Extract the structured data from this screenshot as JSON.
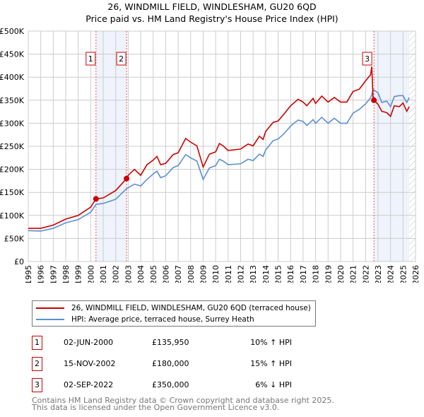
{
  "chart_data": {
    "type": "line",
    "title": "26, WINDMILL FIELD, WINDLESHAM, GU20 6QD",
    "subtitle": "Price paid vs. HM Land Registry's House Price Index (HPI)",
    "ylim": [
      0,
      500000
    ],
    "xlim": [
      1995,
      2026
    ],
    "yticks": [
      {
        "v": 0,
        "label": "£0"
      },
      {
        "v": 50000,
        "label": "£50K"
      },
      {
        "v": 100000,
        "label": "£100K"
      },
      {
        "v": 150000,
        "label": "£150K"
      },
      {
        "v": 200000,
        "label": "£200K"
      },
      {
        "v": 250000,
        "label": "£250K"
      },
      {
        "v": 300000,
        "label": "£300K"
      },
      {
        "v": 350000,
        "label": "£350K"
      },
      {
        "v": 400000,
        "label": "£400K"
      },
      {
        "v": 450000,
        "label": "£450K"
      },
      {
        "v": 500000,
        "label": "£500K"
      }
    ],
    "xticks": [
      "1995",
      "1996",
      "1997",
      "1998",
      "1999",
      "2000",
      "2001",
      "2002",
      "2003",
      "2004",
      "2005",
      "2006",
      "2007",
      "2008",
      "2009",
      "2010",
      "2011",
      "2012",
      "2013",
      "2014",
      "2015",
      "2016",
      "2017",
      "2018",
      "2019",
      "2020",
      "2021",
      "2022",
      "2023",
      "2024",
      "2025",
      "2026"
    ],
    "grid": true,
    "x": [
      1995,
      1996,
      1997,
      1998,
      1999,
      2000,
      2000.42,
      2001,
      2002,
      2002.87,
      2003,
      2003.5,
      2004,
      2004.5,
      2005,
      2005.3,
      2005.6,
      2006,
      2006.6,
      2007,
      2007.6,
      2008,
      2008.5,
      2009,
      2009.5,
      2010,
      2010.3,
      2010.6,
      2011,
      2012,
      2012.6,
      2013,
      2013.5,
      2013.8,
      2014,
      2014.6,
      2015,
      2015.5,
      2016,
      2016.6,
      2017,
      2017.3,
      2017.8,
      2018,
      2018.5,
      2019,
      2019.5,
      2020,
      2020.5,
      2021,
      2021.5,
      2022,
      2022.4,
      2022.5,
      2022.6,
      2022.67,
      2023,
      2023.3,
      2023.7,
      2024,
      2024.3,
      2024.7,
      2025,
      2025.3,
      2025.5
    ],
    "series": [
      {
        "name": "26, WINDMILL FIELD, WINDLESHAM, GU20 6QD (terraced house)",
        "color": "#cc0000",
        "values": [
          72000,
          72000,
          79000,
          92000,
          100000,
          118000,
          136000,
          138000,
          154000,
          180000,
          187000,
          200000,
          187000,
          210000,
          220000,
          228000,
          210000,
          213000,
          232000,
          236000,
          267000,
          259000,
          251000,
          205000,
          233000,
          238000,
          256000,
          251000,
          241000,
          244000,
          255000,
          251000,
          272000,
          265000,
          282000,
          302000,
          305000,
          321000,
          338000,
          352000,
          346000,
          338000,
          354000,
          343000,
          359000,
          346000,
          356000,
          346000,
          346000,
          369000,
          374000,
          392000,
          405000,
          423000,
          354000,
          350000,
          341000,
          326000,
          323000,
          315000,
          338000,
          336000,
          344000,
          326000,
          336000
        ]
      },
      {
        "name": "HPI: Average price, terraced house, Surrey Heath",
        "color": "#5b8fd4",
        "values": [
          67000,
          66000,
          72000,
          84000,
          91000,
          107000,
          124000,
          126000,
          135000,
          158000,
          160000,
          168000,
          164000,
          178000,
          190000,
          196000,
          182000,
          186000,
          204000,
          208000,
          232000,
          225000,
          218000,
          178000,
          203000,
          208000,
          222000,
          218000,
          210000,
          212000,
          222000,
          219000,
          233000,
          228000,
          242000,
          262000,
          266000,
          278000,
          294000,
          307000,
          304000,
          295000,
          308000,
          300000,
          313000,
          300000,
          311000,
          300000,
          300000,
          322000,
          330000,
          342000,
          355000,
          362000,
          373000,
          372000,
          366000,
          345000,
          348000,
          336000,
          358000,
          360000,
          360000,
          345000,
          356000
        ]
      }
    ],
    "sales": [
      {
        "label": "1",
        "x": 2000.42,
        "value": 135950
      },
      {
        "label": "2",
        "x": 2002.87,
        "value": 180000
      },
      {
        "label": "3",
        "x": 2022.67,
        "value": 350000
      }
    ],
    "shaded": [
      [
        2000.42,
        2002.87
      ],
      [
        2022.67,
        2025.5
      ]
    ],
    "hatch_from": 2025.5,
    "legend": "bottom"
  },
  "table": [
    {
      "num": "1",
      "date": "02-JUN-2000",
      "price": "£135,950",
      "hpi": "10% ↑ HPI"
    },
    {
      "num": "2",
      "date": "15-NOV-2002",
      "price": "£180,000",
      "hpi": "15% ↑ HPI"
    },
    {
      "num": "3",
      "date": "02-SEP-2022",
      "price": "£350,000",
      "hpi": "6% ↓ HPI"
    }
  ],
  "footer": [
    "Contains HM Land Registry data © Crown copyright and database right 2025.",
    "This data is licensed under the Open Government Licence v3.0."
  ]
}
